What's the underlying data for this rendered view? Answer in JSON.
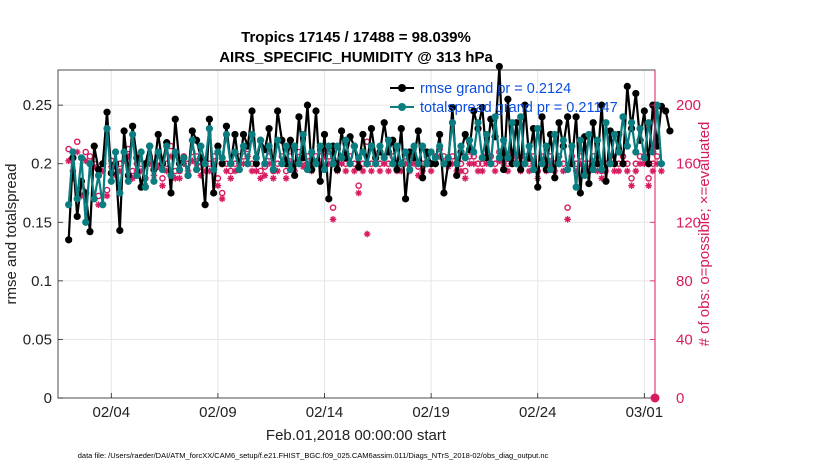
{
  "chart_data": {
    "type": "line",
    "title": "Tropics 17145 / 17488 = 98.039%",
    "subtitle": "AIRS_SPECIFIC_HUMIDITY @ 313 hPa",
    "xlabel": "Feb.01,2018 00:00:00 start",
    "ylabel": "rmse and totalspread",
    "y2label": "# of obs: o=possible; ×=evaluated",
    "xlim": [
      0.5,
      28.5
    ],
    "ylim": [
      0,
      0.28
    ],
    "y2lim": [
      0,
      224
    ],
    "x_ticks": [
      3,
      8,
      13,
      18,
      23,
      28
    ],
    "x_tick_labels": [
      "02/04",
      "02/09",
      "02/14",
      "02/19",
      "02/24",
      "03/01"
    ],
    "y_ticks": [
      0,
      0.05,
      0.1,
      0.15,
      0.2,
      0.25
    ],
    "y_tick_labels": [
      "0",
      "0.05",
      "0.1",
      "0.15",
      "0.2",
      "0.25"
    ],
    "y2_ticks": [
      0,
      40,
      80,
      120,
      160,
      200
    ],
    "y2_tick_labels": [
      "0",
      "40",
      "80",
      "120",
      "160",
      "200"
    ],
    "grid": true,
    "legend_position": "top-right",
    "colors": {
      "rmse": "#000000",
      "spread": "#0a7d80",
      "obs": "#d81b60",
      "legend_text": "#0b4fe0",
      "grid": "#e6e6e6"
    },
    "series": [
      {
        "name": "rmse grand pr = 0.2124",
        "values": [
          0.135,
          0.205,
          0.155,
          0.185,
          0.175,
          0.142,
          0.215,
          0.195,
          0.2,
          0.244,
          0.192,
          0.2,
          0.143,
          0.228,
          0.19,
          0.232,
          0.205,
          0.18,
          0.2,
          0.215,
          0.195,
          0.225,
          0.2,
          0.218,
          0.175,
          0.238,
          0.2,
          0.205,
          0.19,
          0.228,
          0.22,
          0.205,
          0.165,
          0.238,
          0.175,
          0.215,
          0.2,
          0.232,
          0.2,
          0.225,
          0.195,
          0.225,
          0.215,
          0.245,
          0.2,
          0.22,
          0.212,
          0.23,
          0.195,
          0.245,
          0.22,
          0.2,
          0.22,
          0.19,
          0.24,
          0.205,
          0.25,
          0.195,
          0.245,
          0.185,
          0.225,
          0.17,
          0.215,
          0.195,
          0.228,
          0.205,
          0.223,
          0.215,
          0.197,
          0.225,
          0.2,
          0.23,
          0.205,
          0.21,
          0.235,
          0.21,
          0.22,
          0.195,
          0.23,
          0.17,
          0.21,
          0.205,
          0.228,
          0.188,
          0.21,
          0.2,
          0.2,
          0.225,
          0.175,
          0.2,
          0.248,
          0.19,
          0.21,
          0.225,
          0.212,
          0.245,
          0.23,
          0.248,
          0.205,
          0.238,
          0.223,
          0.283,
          0.195,
          0.255,
          0.2,
          0.235,
          0.195,
          0.25,
          0.205,
          0.23,
          0.18,
          0.24,
          0.195,
          0.225,
          0.188,
          0.235,
          0.215,
          0.24,
          0.2,
          0.24,
          0.175,
          0.223,
          0.183,
          0.235,
          0.2,
          0.25,
          0.185,
          0.228,
          0.2,
          0.225,
          0.2,
          0.266,
          0.23,
          0.26,
          0.22,
          0.245,
          0.2,
          0.25,
          0.215,
          0.249,
          0.245,
          0.228
        ]
      },
      {
        "name": "totalspread grand pr = 0.21147",
        "values": [
          0.165,
          0.21,
          0.17,
          0.205,
          0.15,
          0.2,
          0.17,
          0.19,
          0.165,
          0.23,
          0.185,
          0.21,
          0.175,
          0.21,
          0.185,
          0.225,
          0.19,
          0.21,
          0.18,
          0.215,
          0.185,
          0.21,
          0.195,
          0.215,
          0.19,
          0.21,
          0.195,
          0.205,
          0.19,
          0.22,
          0.195,
          0.215,
          0.2,
          0.23,
          0.195,
          0.21,
          0.205,
          0.225,
          0.2,
          0.21,
          0.195,
          0.215,
          0.2,
          0.225,
          0.205,
          0.22,
          0.2,
          0.215,
          0.195,
          0.22,
          0.2,
          0.215,
          0.195,
          0.215,
          0.2,
          0.225,
          0.195,
          0.21,
          0.2,
          0.215,
          0.195,
          0.215,
          0.2,
          0.215,
          0.205,
          0.22,
          0.2,
          0.215,
          0.205,
          0.21,
          0.2,
          0.215,
          0.2,
          0.215,
          0.205,
          0.22,
          0.2,
          0.215,
          0.2,
          0.21,
          0.195,
          0.215,
          0.2,
          0.215,
          0.2,
          0.21,
          0.205,
          0.215,
          0.2,
          0.205,
          0.235,
          0.2,
          0.215,
          0.205,
          0.22,
          0.21,
          0.235,
          0.205,
          0.225,
          0.2,
          0.24,
          0.205,
          0.22,
          0.205,
          0.235,
          0.2,
          0.24,
          0.2,
          0.215,
          0.195,
          0.23,
          0.2,
          0.215,
          0.195,
          0.225,
          0.2,
          0.22,
          0.195,
          0.215,
          0.18,
          0.22,
          0.19,
          0.225,
          0.195,
          0.22,
          0.195,
          0.235,
          0.2,
          0.225,
          0.21,
          0.24,
          0.215,
          0.235,
          0.21,
          0.23,
          0.205,
          0.235,
          0.21,
          0.25,
          0.2
        ]
      },
      {
        "name": "obs possible",
        "values": [
          170,
          155,
          175,
          145,
          168,
          165,
          163,
          138,
          160,
          142,
          162,
          158,
          160,
          168,
          170,
          155,
          160,
          160,
          150,
          165,
          158,
          162,
          150,
          160,
          172,
          155,
          155,
          165,
          160,
          168,
          165,
          158,
          160,
          160,
          165,
          150,
          140,
          160,
          155,
          160,
          165,
          165,
          170,
          160,
          160,
          155,
          158,
          165,
          155,
          160,
          165,
          155,
          165,
          160,
          168,
          162,
          165,
          160,
          165,
          165,
          170,
          165,
          130,
          160,
          165,
          160,
          165,
          160,
          145,
          160,
          175,
          160,
          165,
          160,
          165,
          160,
          165,
          160,
          160,
          165,
          160,
          165,
          158,
          160,
          165,
          160,
          165,
          170,
          165,
          162,
          165,
          160,
          160,
          155,
          165,
          165,
          160,
          160,
          165,
          165,
          160,
          168,
          165,
          160,
          168,
          165,
          160,
          165,
          160,
          165,
          155,
          165,
          160,
          165,
          160,
          165,
          160,
          130,
          165,
          160,
          165,
          160,
          160,
          165,
          160,
          155,
          160,
          165,
          160,
          160,
          165,
          160,
          150,
          160,
          165,
          165,
          150,
          160,
          165,
          160
        ]
      },
      {
        "name": "obs evaluated",
        "values": [
          162,
          150,
          168,
          138,
          162,
          160,
          158,
          132,
          155,
          138,
          158,
          152,
          155,
          162,
          165,
          150,
          155,
          155,
          145,
          160,
          152,
          158,
          145,
          155,
          165,
          150,
          150,
          160,
          155,
          162,
          160,
          152,
          155,
          155,
          160,
          145,
          136,
          155,
          150,
          155,
          160,
          160,
          165,
          155,
          155,
          150,
          152,
          160,
          150,
          155,
          160,
          150,
          160,
          155,
          162,
          158,
          160,
          155,
          160,
          160,
          165,
          160,
          122,
          155,
          160,
          155,
          160,
          155,
          140,
          155,
          112,
          155,
          160,
          155,
          160,
          155,
          160,
          155,
          155,
          160,
          155,
          160,
          152,
          155,
          160,
          155,
          160,
          165,
          160,
          158,
          160,
          155,
          155,
          150,
          160,
          160,
          155,
          155,
          160,
          160,
          155,
          162,
          160,
          155,
          162,
          160,
          155,
          160,
          155,
          160,
          150,
          160,
          155,
          160,
          155,
          160,
          155,
          122,
          160,
          155,
          160,
          155,
          155,
          160,
          155,
          150,
          155,
          160,
          155,
          155,
          160,
          155,
          145,
          155,
          160,
          160,
          145,
          155,
          160,
          155
        ]
      }
    ]
  },
  "footer": "data file: /Users/raeder/DAI/ATM_forcXX/CAM6_setup/f.e21.FHIST_BGC.f09_025.CAM6assim.011/Diags_NTrS_2018-02/obs_diag_output.nc"
}
